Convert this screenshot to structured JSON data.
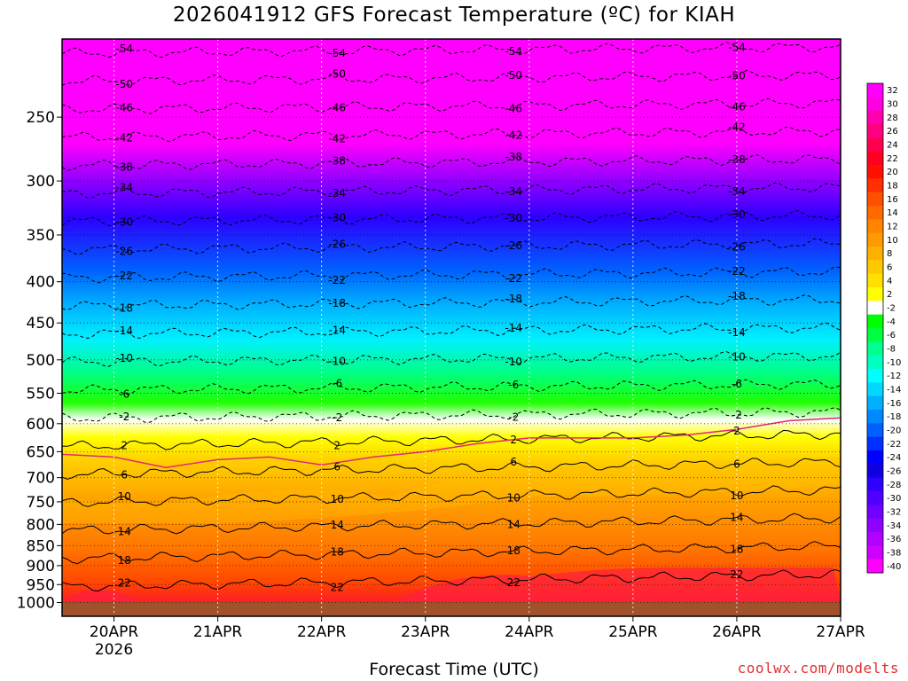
{
  "title": "2026041912 GFS Forecast Temperature (ºC) for KIAH",
  "credit": "coolwx.com/modelts",
  "chart_data": {
    "type": "heatmap",
    "title": "2026041912 GFS Forecast Temperature (ºC) for KIAH",
    "xlabel": "Forecast Time (UTC)",
    "ylabel": "",
    "x_ticks": [
      "20APR",
      "21APR",
      "22APR",
      "23APR",
      "24APR",
      "25APR",
      "26APR",
      "27APR"
    ],
    "x_year": "2026",
    "x_range_days": [
      19.5,
      27.0
    ],
    "y_scale": "log",
    "y_range_hpa": [
      1040,
      200
    ],
    "y_ticks": [
      250,
      300,
      350,
      400,
      450,
      500,
      550,
      600,
      650,
      700,
      750,
      800,
      850,
      900,
      950,
      1000
    ],
    "grid": "dotted",
    "colorbar": {
      "ticks": [
        32,
        30,
        28,
        26,
        24,
        22,
        20,
        18,
        16,
        14,
        12,
        10,
        8,
        6,
        4,
        2,
        -2,
        -4,
        -6,
        -8,
        -10,
        -12,
        -14,
        -16,
        -18,
        -20,
        -22,
        -24,
        -26,
        -28,
        -30,
        -32,
        -34,
        -36,
        -38,
        -40
      ],
      "colors": [
        "#ff00ff",
        "#ff00e0",
        "#ff00b0",
        "#ff0080",
        "#ff0050",
        "#ff0020",
        "#ff1000",
        "#ff3000",
        "#ff5000",
        "#ff6a00",
        "#ff8400",
        "#ff9a00",
        "#ffb000",
        "#ffc800",
        "#ffe000",
        "#ffff00",
        "#ffffff",
        "#00ff00",
        "#00ff40",
        "#00ff90",
        "#00ffc0",
        "#00ffff",
        "#00d8ff",
        "#00b0ff",
        "#0088ff",
        "#0060ff",
        "#0030ff",
        "#0000ff",
        "#1000e0",
        "#3000ff",
        "#5000ff",
        "#7000ff",
        "#9000ff",
        "#b000ff",
        "#d000ff",
        "#ff00ff"
      ]
    },
    "isotherms_850hpa_day": [
      {
        "day": 19.5,
        "profile_surface_C": 25
      },
      {
        "day": 23.5,
        "profile_surface_C": 24
      },
      {
        "day": 27.0,
        "profile_surface_C": 25
      }
    ],
    "contour_labels_dashed": [
      "-54",
      "-50",
      "-46",
      "-42",
      "-38",
      "-34",
      "-30",
      "-26",
      "-22",
      "-18",
      "-14",
      "-10",
      "-6",
      "-2"
    ],
    "contour_labels_solid": [
      "2",
      "6",
      "10",
      "14",
      "18",
      "22"
    ],
    "freezing_level_hpa": [
      [
        19.5,
        655
      ],
      [
        20.0,
        660
      ],
      [
        20.5,
        680
      ],
      [
        21.0,
        665
      ],
      [
        21.5,
        660
      ],
      [
        22.0,
        675
      ],
      [
        22.5,
        660
      ],
      [
        23.0,
        650
      ],
      [
        23.5,
        635
      ],
      [
        24.0,
        625
      ],
      [
        24.5,
        625
      ],
      [
        25.0,
        625
      ],
      [
        25.5,
        620
      ],
      [
        26.0,
        610
      ],
      [
        26.5,
        595
      ],
      [
        27.0,
        590
      ]
    ]
  }
}
